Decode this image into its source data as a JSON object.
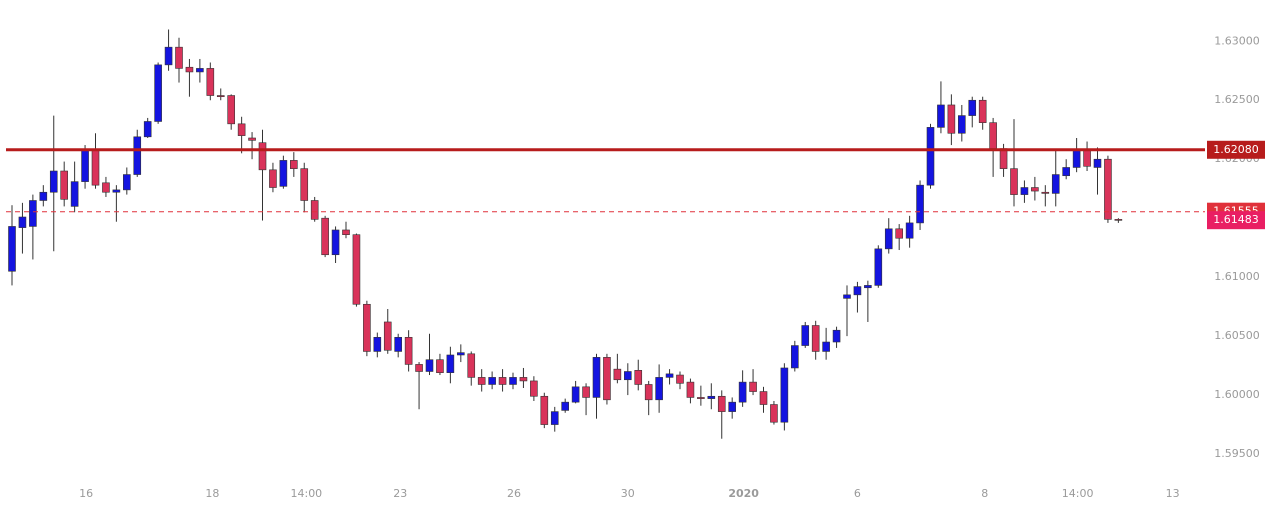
{
  "chart_data": {
    "type": "candlestick",
    "up_color": "#1414e0",
    "down_color": "#d9335a",
    "open": [
      1.6105,
      1.6142,
      1.6143,
      1.6165,
      1.6172,
      1.619,
      1.616,
      1.6181,
      1.6208,
      1.618,
      1.6172,
      1.6174,
      1.6187,
      1.6219,
      1.6232,
      1.628,
      1.6295,
      1.6278,
      1.6274,
      1.6277,
      1.6254,
      1.6254,
      1.623,
      1.6218,
      1.6214,
      1.6191,
      1.6177,
      1.6199,
      1.6192,
      1.6165,
      1.615,
      1.6119,
      1.614,
      1.6136,
      1.6077,
      1.6037,
      1.6062,
      1.6037,
      1.6049,
      1.6026,
      1.602,
      1.603,
      1.6019,
      1.6034,
      1.6035,
      1.6015,
      1.6009,
      1.6015,
      1.6009,
      1.6015,
      1.6012,
      1.5999,
      1.5975,
      1.5987,
      1.5994,
      1.6007,
      1.5998,
      1.6032,
      1.6022,
      1.6013,
      1.6021,
      1.6009,
      1.5996,
      1.6015,
      1.6017,
      1.6011,
      1.5998,
      1.5997,
      1.5999,
      1.5986,
      1.5994,
      1.6011,
      1.6003,
      1.5992,
      1.5977,
      1.6023,
      1.6042,
      1.6059,
      1.6037,
      1.6045,
      1.6082,
      1.6085,
      1.6091,
      1.6093,
      1.6124,
      1.6141,
      1.6133,
      1.6146,
      1.6178,
      1.6227,
      1.6246,
      1.6222,
      1.6237,
      1.625,
      1.6231,
      1.6209,
      1.6192,
      1.617,
      1.6176,
      1.6172,
      1.6171,
      1.6186,
      1.6193,
      1.6208,
      1.6193,
      1.62,
      1.6149
    ],
    "high": [
      1.6161,
      1.6163,
      1.617,
      1.6178,
      1.6237,
      1.6198,
      1.6198,
      1.6212,
      1.6222,
      1.6185,
      1.6178,
      1.6193,
      1.6225,
      1.6235,
      1.6282,
      1.631,
      1.6303,
      1.6285,
      1.6285,
      1.6282,
      1.626,
      1.6255,
      1.6236,
      1.6223,
      1.6225,
      1.6197,
      1.6203,
      1.6206,
      1.6197,
      1.6168,
      1.6152,
      1.6143,
      1.6147,
      1.6137,
      1.608,
      1.6053,
      1.6073,
      1.6052,
      1.6055,
      1.6028,
      1.6052,
      1.6035,
      1.6041,
      1.6043,
      1.6037,
      1.6022,
      1.602,
      1.6022,
      1.6019,
      1.6023,
      1.6016,
      1.6002,
      1.599,
      1.5997,
      1.6012,
      1.601,
      1.6035,
      1.6035,
      1.6035,
      1.6027,
      1.603,
      1.6012,
      1.6026,
      1.6022,
      1.602,
      1.6014,
      1.6008,
      1.601,
      1.6004,
      1.5998,
      1.6021,
      1.6022,
      1.6007,
      1.5995,
      1.6027,
      1.6046,
      1.6062,
      1.6063,
      1.6057,
      1.6058,
      1.6093,
      1.6096,
      1.6097,
      1.6127,
      1.615,
      1.6145,
      1.6152,
      1.6182,
      1.623,
      1.6266,
      1.6255,
      1.6246,
      1.6253,
      1.6253,
      1.6235,
      1.6213,
      1.6234,
      1.6182,
      1.6185,
      1.6178,
      1.6208,
      1.62,
      1.6218,
      1.6215,
      1.621,
      1.6203,
      1.615
    ],
    "low": [
      1.6093,
      1.612,
      1.6115,
      1.616,
      1.6122,
      1.616,
      1.6155,
      1.6175,
      1.6175,
      1.6168,
      1.6147,
      1.617,
      1.6185,
      1.6218,
      1.623,
      1.6275,
      1.6265,
      1.6253,
      1.6265,
      1.625,
      1.625,
      1.6225,
      1.6205,
      1.62,
      1.6148,
      1.6172,
      1.6175,
      1.6185,
      1.6155,
      1.6147,
      1.6117,
      1.6112,
      1.6133,
      1.6075,
      1.6033,
      1.6032,
      1.6035,
      1.6032,
      1.602,
      1.5988,
      1.6017,
      1.6017,
      1.601,
      1.6028,
      1.6008,
      1.6003,
      1.6005,
      1.6003,
      1.6005,
      1.6006,
      1.5995,
      1.5972,
      1.5969,
      1.5985,
      1.5993,
      1.5983,
      1.598,
      1.5992,
      1.601,
      1.6,
      1.6004,
      1.5983,
      1.5985,
      1.6009,
      1.6005,
      1.5993,
      1.5991,
      1.5988,
      1.5963,
      1.598,
      1.599,
      1.6,
      1.5985,
      1.5975,
      1.597,
      1.602,
      1.604,
      1.603,
      1.603,
      1.604,
      1.605,
      1.607,
      1.6062,
      1.6091,
      1.612,
      1.6123,
      1.6125,
      1.614,
      1.6175,
      1.6222,
      1.6212,
      1.6215,
      1.6227,
      1.6225,
      1.6185,
      1.6185,
      1.616,
      1.6163,
      1.6165,
      1.616,
      1.616,
      1.6183,
      1.6189,
      1.619,
      1.617,
      1.6146,
      1.6146
    ],
    "close": [
      1.6143,
      1.6151,
      1.6165,
      1.6172,
      1.619,
      1.6166,
      1.6181,
      1.6208,
      1.6178,
      1.6172,
      1.6174,
      1.6187,
      1.6219,
      1.6232,
      1.628,
      1.6295,
      1.6277,
      1.6274,
      1.6277,
      1.6254,
      1.6253,
      1.623,
      1.622,
      1.6216,
      1.6191,
      1.6176,
      1.6199,
      1.6192,
      1.6165,
      1.6149,
      1.6119,
      1.614,
      1.6136,
      1.6077,
      1.6037,
      1.6049,
      1.6038,
      1.6049,
      1.6026,
      1.602,
      1.603,
      1.6019,
      1.6034,
      1.6036,
      1.6015,
      1.6009,
      1.6015,
      1.6009,
      1.6015,
      1.6012,
      1.5999,
      1.5975,
      1.5986,
      1.5994,
      1.6007,
      1.5998,
      1.6032,
      1.5996,
      1.6013,
      1.602,
      1.6009,
      1.5996,
      1.6015,
      1.6018,
      1.601,
      1.5998,
      1.5997,
      1.5999,
      1.5986,
      1.5994,
      1.6011,
      1.6003,
      1.5992,
      1.5977,
      1.6023,
      1.6042,
      1.6059,
      1.6037,
      1.6045,
      1.6055,
      1.6085,
      1.6092,
      1.6093,
      1.6124,
      1.6141,
      1.6133,
      1.6146,
      1.6178,
      1.6227,
      1.6246,
      1.6222,
      1.6237,
      1.625,
      1.6231,
      1.6209,
      1.6192,
      1.617,
      1.6176,
      1.6173,
      1.6171,
      1.6187,
      1.6193,
      1.6208,
      1.6194,
      1.62,
      1.6149,
      1.61483
    ],
    "ylim": [
      1.5928,
      1.6335
    ],
    "yticks": [
      {
        "value": 1.595,
        "label": "1.59500"
      },
      {
        "value": 1.6,
        "label": "1.60000"
      },
      {
        "value": 1.605,
        "label": "1.60500"
      },
      {
        "value": 1.61,
        "label": "1.61000"
      },
      {
        "value": 1.615,
        "label": "1.61500"
      },
      {
        "value": 1.62,
        "label": "1.62000"
      },
      {
        "value": 1.625,
        "label": "1.62500"
      },
      {
        "value": 1.63,
        "label": "1.63000"
      }
    ],
    "xlim": [
      -1.15,
      114.3
    ],
    "xticks": [
      {
        "value": 7.1,
        "label": "16"
      },
      {
        "value": 19.2,
        "label": "18"
      },
      {
        "value": 28.2,
        "label": "14:00"
      },
      {
        "value": 37.2,
        "label": "23"
      },
      {
        "value": 48.1,
        "label": "26"
      },
      {
        "value": 59.0,
        "label": "30"
      },
      {
        "value": 70.1,
        "label": "2020"
      },
      {
        "value": 81.0,
        "label": "6"
      },
      {
        "value": 93.2,
        "label": "8"
      },
      {
        "value": 102.1,
        "label": "14:00"
      },
      {
        "value": 111.2,
        "label": "13"
      }
    ],
    "price_labels": [
      {
        "value": 1.6208,
        "label": "1.62080",
        "color": "#b71c1c",
        "line": "solid"
      },
      {
        "value": 1.61555,
        "label": "1.61555",
        "color": "#e0303a",
        "line": "dashed"
      },
      {
        "value": 1.61483,
        "label": "1.61483",
        "color": "#e91e63"
      }
    ]
  }
}
